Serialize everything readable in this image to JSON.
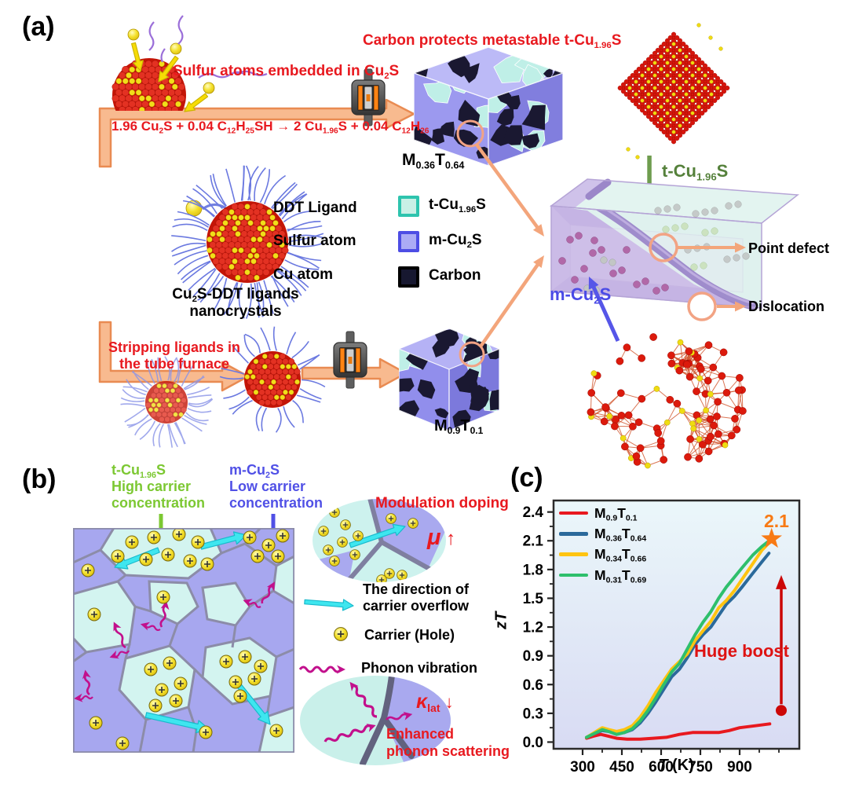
{
  "colors": {
    "accent_red": "#E8191F",
    "arrow_fill": "#F8BA8F",
    "arrow_stroke": "#E98B52",
    "green_label": "#7CC832",
    "blue_label": "#5050E6",
    "dark_green_label": "#55813B",
    "slab_blue_label": "#4A4AE6",
    "cyan_arrow": "#3EE6EF",
    "phonon_magenta": "#C2108C"
  },
  "panel_a": {
    "label": "(a)",
    "sulfur_note_html": "Sulfur atoms embedded in Cu<sub>2</sub>S",
    "reaction_html": "1.96 Cu<sub>2</sub>S + 0.04 C<sub>12</sub>H<sub>25</sub>SH &#8594; 2 Cu<sub>1.96</sub>S + 0.04 C<sub>12</sub>H<sub>26</sub>",
    "carbon_note_html": "Carbon protects metastable t-Cu<sub>1.96</sub>S",
    "cube1_label_html": "M<sub>0.36</sub>T<sub>0.64</sub>",
    "cube2_label_html": "M<sub>0.9</sub>T<sub>0.1</sub>",
    "legend_atoms": [
      {
        "label": "DDT Ligand"
      },
      {
        "label": "Sulfur atom"
      },
      {
        "label": "Cu atom"
      }
    ],
    "legend_phases": [
      {
        "label_html": "t-Cu<sub>1.96</sub>S",
        "fill": "#C9F0E6",
        "border": "#2EC4AE"
      },
      {
        "label_html": "m-Cu<sub>2</sub>S",
        "fill": "#ABABF5",
        "border": "#4D4DE4"
      },
      {
        "label_html": "Carbon",
        "fill": "#171830",
        "border": "#000000"
      }
    ],
    "nanocrystal_caption_html": "Cu<sub>2</sub>S-DDT ligands<br>nanocrystals",
    "stripping_note_html": "Stripping ligands in<br>the tube furnace",
    "tcu_pointer_html": "t-Cu<sub>1.96</sub>S",
    "mcu_pointer_html": "m-Cu<sub>2</sub>S",
    "point_defect_label": "Point defect",
    "dislocation_label": "Dislocation"
  },
  "panel_b": {
    "label": "(b)",
    "green_note_html": "t-Cu<sub>1.96</sub>S<br>High carrier<br>concentration",
    "blue_note_html": "m-Cu<sub>2</sub>S<br>Low carrier<br>concentration",
    "modulation_label": "Modulation doping",
    "mu_symbol": "μ",
    "mu_arrow": "↑",
    "overflow_label_html": "The direction of<br>carrier overflow",
    "carrier_label": "Carrier (Hole)",
    "phonon_label": "Phonon vibration",
    "kappa_symbol": "κ",
    "kappa_sub": "lat",
    "kappa_arrow": "↓",
    "enhanced_label_html": "Enhanced<br>phonon scattering"
  },
  "panel_c": {
    "label": "(c)"
  },
  "chart_data": {
    "type": "line",
    "xlabel_main": "T",
    "xlabel_unit": "(K)",
    "ylabel": "zT",
    "xlim": [
      189,
      1128
    ],
    "ylim": [
      -0.07,
      2.52
    ],
    "x_ticks": [
      300,
      450,
      600,
      750,
      900
    ],
    "x_minor_ticks": [
      375,
      525,
      675,
      825,
      975,
      1050
    ],
    "y_ticks": [
      0.0,
      0.3,
      0.6,
      0.9,
      1.2,
      1.5,
      1.8,
      2.1,
      2.4
    ],
    "background_gradient": [
      "#EBF7FA",
      "#D8DBF3"
    ],
    "legend_position": "top-left",
    "series": [
      {
        "name_html": "M<sub>0.9</sub>T<sub>0.1</sub>",
        "color": "#E8191F",
        "points": [
          [
            315,
            0.04
          ],
          [
            340,
            0.06
          ],
          [
            370,
            0.08
          ],
          [
            400,
            0.06
          ],
          [
            430,
            0.04
          ],
          [
            470,
            0.03
          ],
          [
            520,
            0.03
          ],
          [
            570,
            0.04
          ],
          [
            620,
            0.05
          ],
          [
            670,
            0.08
          ],
          [
            720,
            0.1
          ],
          [
            770,
            0.1
          ],
          [
            820,
            0.1
          ],
          [
            860,
            0.12
          ],
          [
            900,
            0.15
          ],
          [
            960,
            0.17
          ],
          [
            1015,
            0.19
          ]
        ]
      },
      {
        "name_html": "M<sub>0.36</sub>T<sub>0.64</sub>",
        "color": "#2B6A9B",
        "points": [
          [
            315,
            0.05
          ],
          [
            345,
            0.09
          ],
          [
            375,
            0.12
          ],
          [
            400,
            0.11
          ],
          [
            430,
            0.09
          ],
          [
            460,
            0.1
          ],
          [
            490,
            0.13
          ],
          [
            520,
            0.2
          ],
          [
            550,
            0.3
          ],
          [
            580,
            0.42
          ],
          [
            610,
            0.55
          ],
          [
            640,
            0.68
          ],
          [
            670,
            0.76
          ],
          [
            700,
            0.88
          ],
          [
            730,
            1.02
          ],
          [
            760,
            1.12
          ],
          [
            790,
            1.2
          ],
          [
            820,
            1.32
          ],
          [
            850,
            1.44
          ],
          [
            880,
            1.52
          ],
          [
            910,
            1.62
          ],
          [
            950,
            1.76
          ],
          [
            985,
            1.88
          ],
          [
            1012,
            1.97
          ]
        ]
      },
      {
        "name_html": "M<sub>0.34</sub>T<sub>0.66</sub>",
        "color": "#FFC411",
        "points": [
          [
            315,
            0.05
          ],
          [
            345,
            0.1
          ],
          [
            375,
            0.15
          ],
          [
            400,
            0.13
          ],
          [
            430,
            0.11
          ],
          [
            460,
            0.13
          ],
          [
            490,
            0.17
          ],
          [
            520,
            0.26
          ],
          [
            550,
            0.38
          ],
          [
            580,
            0.52
          ],
          [
            610,
            0.64
          ],
          [
            640,
            0.76
          ],
          [
            670,
            0.84
          ],
          [
            700,
            0.92
          ],
          [
            730,
            1.06
          ],
          [
            760,
            1.16
          ],
          [
            790,
            1.26
          ],
          [
            820,
            1.4
          ],
          [
            850,
            1.48
          ],
          [
            880,
            1.58
          ],
          [
            910,
            1.7
          ],
          [
            950,
            1.86
          ],
          [
            985,
            2.0
          ],
          [
            1020,
            2.1
          ]
        ]
      },
      {
        "name_html": "M<sub>0.31</sub>T<sub>0.69</sub>",
        "color": "#2EBF6C",
        "points": [
          [
            315,
            0.05
          ],
          [
            345,
            0.09
          ],
          [
            375,
            0.13
          ],
          [
            400,
            0.11
          ],
          [
            430,
            0.08
          ],
          [
            460,
            0.1
          ],
          [
            490,
            0.14
          ],
          [
            520,
            0.22
          ],
          [
            550,
            0.33
          ],
          [
            580,
            0.46
          ],
          [
            610,
            0.6
          ],
          [
            640,
            0.73
          ],
          [
            670,
            0.82
          ],
          [
            700,
            0.97
          ],
          [
            730,
            1.12
          ],
          [
            760,
            1.25
          ],
          [
            790,
            1.36
          ],
          [
            820,
            1.5
          ],
          [
            850,
            1.62
          ],
          [
            880,
            1.72
          ],
          [
            910,
            1.82
          ],
          [
            950,
            1.95
          ],
          [
            985,
            2.04
          ],
          [
            1022,
            2.12
          ]
        ]
      }
    ],
    "annotations": {
      "peak_label": "2.1",
      "peak_color": "#F87A14",
      "peak_xy": [
        1022,
        2.12
      ],
      "boost_label": "Huge boost",
      "boost_color": "#DE1212",
      "boost_arrow_color": "#CC0707",
      "boost_x": 1059,
      "boost_y_from": 0.33,
      "boost_y_to": 1.71
    }
  }
}
